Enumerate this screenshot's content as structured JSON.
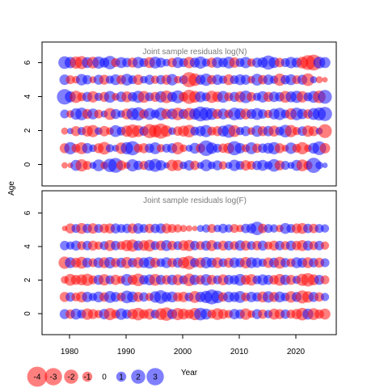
{
  "colors": {
    "positive": "#0000ff",
    "negative": "#ff0000",
    "frame": "#000000",
    "title_text": "#7a7a7a"
  },
  "axes": {
    "ylabel": "Age",
    "xlabel": "Year",
    "x_ticks": [
      "1980",
      "1990",
      "2000",
      "2010",
      "2020"
    ],
    "y_ticks": [
      "0",
      "2",
      "4",
      "6"
    ]
  },
  "legend": {
    "labels": [
      "-4",
      "-3",
      "-2",
      "-1",
      "0",
      "1",
      "2",
      "3"
    ],
    "values": [
      -4,
      -3,
      -2,
      -1,
      0,
      1,
      2,
      3
    ]
  },
  "chart_data": [
    {
      "type": "scatter",
      "subtype": "bubble",
      "title": "Joint sample residuals log(N)",
      "xlim": [
        1974,
        2026
      ],
      "ylim": [
        -1.2,
        7.2
      ],
      "x": [
        1978,
        2024
      ],
      "ages": [
        0,
        1,
        2,
        3,
        4,
        5,
        6
      ],
      "residuals": {
        "0": [
          -0.4,
          -0.3,
          1.2,
          -1.5,
          -0.8,
          0.5,
          1.4,
          -0.6,
          1.8,
          2.2,
          -1.0,
          -0.5,
          1.5,
          0.9,
          -0.8,
          1.2,
          1.7,
          1.1,
          0.4,
          -1.3,
          -1.2,
          0.6,
          1.1,
          -0.9,
          0.5,
          1.4,
          0.6,
          1.0,
          -0.7,
          0.5,
          1.3,
          0.8,
          -1.1,
          -0.8,
          0.9,
          1.2,
          0.7,
          1.6,
          -1.0,
          0.8,
          0.5,
          1.2,
          -1.4,
          -0.8,
          2.3,
          0.6,
          0.3
        ],
        "1": [
          -1.0,
          1.5,
          -0.8,
          -1.4,
          1.1,
          0.6,
          -1.0,
          -1.6,
          0.7,
          0.5,
          -1.3,
          1.5,
          2.0,
          -0.8,
          -1.0,
          0.9,
          1.4,
          -0.7,
          0.8,
          1.0,
          -1.5,
          -0.6,
          0.5,
          1.2,
          -0.9,
          2.4,
          1.3,
          0.8,
          -0.9,
          -1.2,
          2.0,
          1.1,
          -0.7,
          1.4,
          -0.9,
          0.9,
          1.2,
          1.5,
          -1.0,
          -0.5,
          1.3,
          -0.8,
          -1.5,
          -0.6,
          1.2,
          1.9,
          -1.1
        ],
        "2": [
          -0.5,
          0.4,
          -1.0,
          0.7,
          -1.2,
          -1.5,
          0.6,
          -1.1,
          -0.6,
          1.4,
          0.8,
          -1.3,
          -1.8,
          -1.4,
          0.9,
          -2.0,
          -1.6,
          -2.3,
          -1.3,
          0.6,
          -0.9,
          -1.2,
          -1.6,
          0.8,
          1.1,
          1.5,
          -0.8,
          -1.0,
          1.2,
          1.8,
          -1.4,
          0.7,
          1.0,
          -0.6,
          1.3,
          -1.0,
          1.1,
          -1.2,
          0.8,
          1.6,
          -1.5,
          -0.7,
          0.9,
          -1.3,
          -1.0,
          0.5,
          -1.9
        ],
        "3": [
          0.8,
          -0.6,
          1.3,
          1.6,
          -1.0,
          1.2,
          -0.8,
          0.5,
          -1.4,
          1.0,
          0.6,
          -1.2,
          1.5,
          1.8,
          -0.9,
          1.4,
          0.8,
          1.6,
          -1.1,
          1.2,
          -1.6,
          1.0,
          -1.5,
          1.3,
          2.2,
          1.8,
          1.4,
          -1.0,
          1.2,
          -0.8,
          1.6,
          1.3,
          -1.2,
          1.0,
          1.4,
          0.9,
          -0.7,
          1.2,
          1.5,
          0.8,
          -1.3,
          1.6,
          1.1,
          -0.9,
          1.4,
          1.7,
          2.0
        ],
        "4": [
          2.4,
          1.2,
          -1.5,
          -0.8,
          1.0,
          -1.3,
          0.7,
          -1.0,
          1.4,
          -0.6,
          1.1,
          -1.2,
          0.9,
          1.5,
          -1.4,
          0.8,
          -1.0,
          1.3,
          -1.6,
          1.0,
          1.7,
          -0.9,
          -2.0,
          -1.4,
          1.2,
          0.8,
          -1.5,
          -1.1,
          1.4,
          -0.8,
          1.0,
          -1.2,
          1.6,
          -0.9,
          0.7,
          1.3,
          -1.0,
          1.1,
          0.9,
          -1.4,
          1.2,
          1.5,
          -1.3,
          0.8,
          1.4,
          -1.6,
          1.9
        ],
        "5": [
          1.1,
          -0.8,
          -0.6,
          1.3,
          0.9,
          -0.5,
          1.0,
          -1.0,
          0.7,
          1.2,
          -0.9,
          1.4,
          0.8,
          -1.1,
          0.6,
          1.0,
          -0.7,
          0.9,
          -1.0,
          1.3,
          -0.6,
          0.8,
          -2.3,
          -1.6,
          1.0,
          1.5,
          -0.9,
          1.1,
          0.7,
          -1.2,
          0.8,
          1.2,
          1.0,
          -0.6,
          1.4,
          -0.9,
          1.1,
          0.7,
          -1.5,
          0.9,
          1.2,
          -0.8,
          1.0,
          -1.6,
          0.5,
          -0.5,
          -0.3
        ],
        "6": [
          1.6,
          1.3,
          -1.5,
          -1.7,
          1.2,
          -1.4,
          1.5,
          1.0,
          1.8,
          -0.8,
          1.2,
          0.9,
          -1.0,
          1.3,
          0.8,
          -1.2,
          1.4,
          1.0,
          0.6,
          -0.9,
          1.2,
          0.8,
          -1.3,
          1.0,
          1.5,
          0.7,
          -1.0,
          1.2,
          0.9,
          1.4,
          -1.1,
          0.8,
          1.3,
          -0.7,
          1.0,
          1.1,
          2.0,
          1.2,
          -0.9,
          0.8,
          1.3,
          1.0,
          -1.4,
          -2.2,
          -2.5,
          1.4,
          1.2
        ]
      }
    },
    {
      "type": "scatter",
      "subtype": "bubble",
      "title": "Joint sample residuals log(F)",
      "xlim": [
        1974,
        2026
      ],
      "ylim": [
        -1.2,
        7.2
      ],
      "x": [
        1978,
        2024
      ],
      "ages": [
        0,
        1,
        2,
        3,
        4,
        5
      ],
      "residuals": {
        "0": [
          1.0,
          -0.9,
          1.2,
          0.8,
          -1.3,
          -1.0,
          -0.7,
          1.1,
          -1.5,
          -0.8,
          1.3,
          0.9,
          -1.1,
          -1.6,
          -0.9,
          -1.2,
          0.8,
          -1.4,
          -1.8,
          1.0,
          -1.5,
          -1.2,
          -0.9,
          -1.5,
          1.6,
          1.2,
          -0.8,
          -1.4,
          -1.0,
          -0.7,
          1.1,
          0.9,
          -1.3,
          -0.6,
          1.0,
          -0.9,
          0.7,
          -1.2,
          -1.0,
          0.9,
          -0.8,
          -1.1,
          -1.6,
          1.2,
          -1.4,
          -0.9,
          -1.2
        ],
        "1": [
          -1.0,
          0.9,
          -0.8,
          -1.2,
          1.1,
          0.7,
          1.2,
          -0.9,
          1.4,
          1.0,
          -0.8,
          1.6,
          1.2,
          -1.0,
          0.9,
          -0.7,
          1.3,
          1.8,
          1.0,
          1.2,
          -0.9,
          -1.1,
          0.8,
          -1.4,
          1.1,
          1.5,
          2.2,
          1.6,
          -0.9,
          1.2,
          1.0,
          1.4,
          -0.8,
          1.1,
          0.9,
          -1.2,
          1.3,
          -1.0,
          1.2,
          0.8,
          -1.3,
          1.0,
          -1.7,
          -1.3,
          1.0,
          -0.9,
          0.7
        ],
        "2": [
          -0.6,
          -1.4,
          -1.0,
          -1.2,
          -1.5,
          -0.8,
          1.0,
          -1.3,
          0.8,
          -1.1,
          -0.7,
          1.4,
          -1.0,
          -1.6,
          0.9,
          1.2,
          -1.4,
          1.0,
          -0.9,
          1.1,
          -1.2,
          0.8,
          -1.6,
          1.1,
          -0.9,
          1.3,
          -1.0,
          0.8,
          -1.2,
          1.0,
          0.9,
          1.4,
          -1.0,
          -1.3,
          0.8,
          1.2,
          1.0,
          -0.9,
          -1.4,
          1.1,
          -1.0,
          0.7,
          -1.5,
          -1.8,
          -1.2,
          1.0,
          -0.8
        ],
        "3": [
          -1.5,
          1.2,
          -1.0,
          -1.4,
          1.0,
          -0.8,
          1.1,
          -1.2,
          1.3,
          -0.9,
          1.0,
          -1.3,
          0.9,
          -1.2,
          1.1,
          1.4,
          -1.0,
          0.8,
          1.2,
          -0.9,
          1.0,
          -1.3,
          -1.9,
          0.9,
          -1.1,
          1.3,
          1.0,
          -1.2,
          0.8,
          -1.0,
          1.1,
          0.9,
          -1.3,
          1.2,
          1.0,
          0.7,
          -1.1,
          1.0,
          -1.4,
          0.9,
          -0.8,
          1.2,
          1.0,
          -1.2,
          0.9,
          -1.0,
          0.8
        ],
        "4": [
          0.9,
          0.7,
          1.0,
          -0.8,
          0.9,
          -1.0,
          -0.7,
          0.8,
          -1.2,
          0.9,
          -0.8,
          -1.3,
          -1.5,
          1.0,
          -1.1,
          -1.4,
          0.8,
          -1.0,
          1.2,
          -0.9,
          0.8,
          -1.1,
          -1.3,
          0.9,
          -0.8,
          1.0,
          -1.2,
          0.7,
          -1.0,
          0.9,
          -0.8,
          1.1,
          -1.0,
          0.8,
          -0.9,
          1.0,
          -0.7,
          -1.0,
          0.9,
          -0.8,
          1.0,
          -0.9,
          -1.2,
          1.0,
          -0.8,
          0.9,
          -0.7
        ],
        "5": [
          -0.3,
          -1.0,
          0.8,
          -1.2,
          0.9,
          -1.1,
          0.8,
          -0.9,
          -1.0,
          1.0,
          0.8,
          0.9,
          -1.0,
          1.1,
          0.8,
          -0.9,
          0.9,
          1.0,
          -1.0,
          -0.8,
          -0.7,
          -0.5,
          -0.4,
          -0.3,
          0.5,
          0.7,
          -0.8,
          0.6,
          0.9,
          0.7,
          -0.8,
          -0.6,
          0.9,
          1.0,
          1.8,
          -0.9,
          0.8,
          0.7,
          -0.6,
          1.2,
          0.8,
          -1.0,
          -1.2,
          0.9,
          -0.9,
          0.8,
          0.7
        ]
      }
    }
  ]
}
